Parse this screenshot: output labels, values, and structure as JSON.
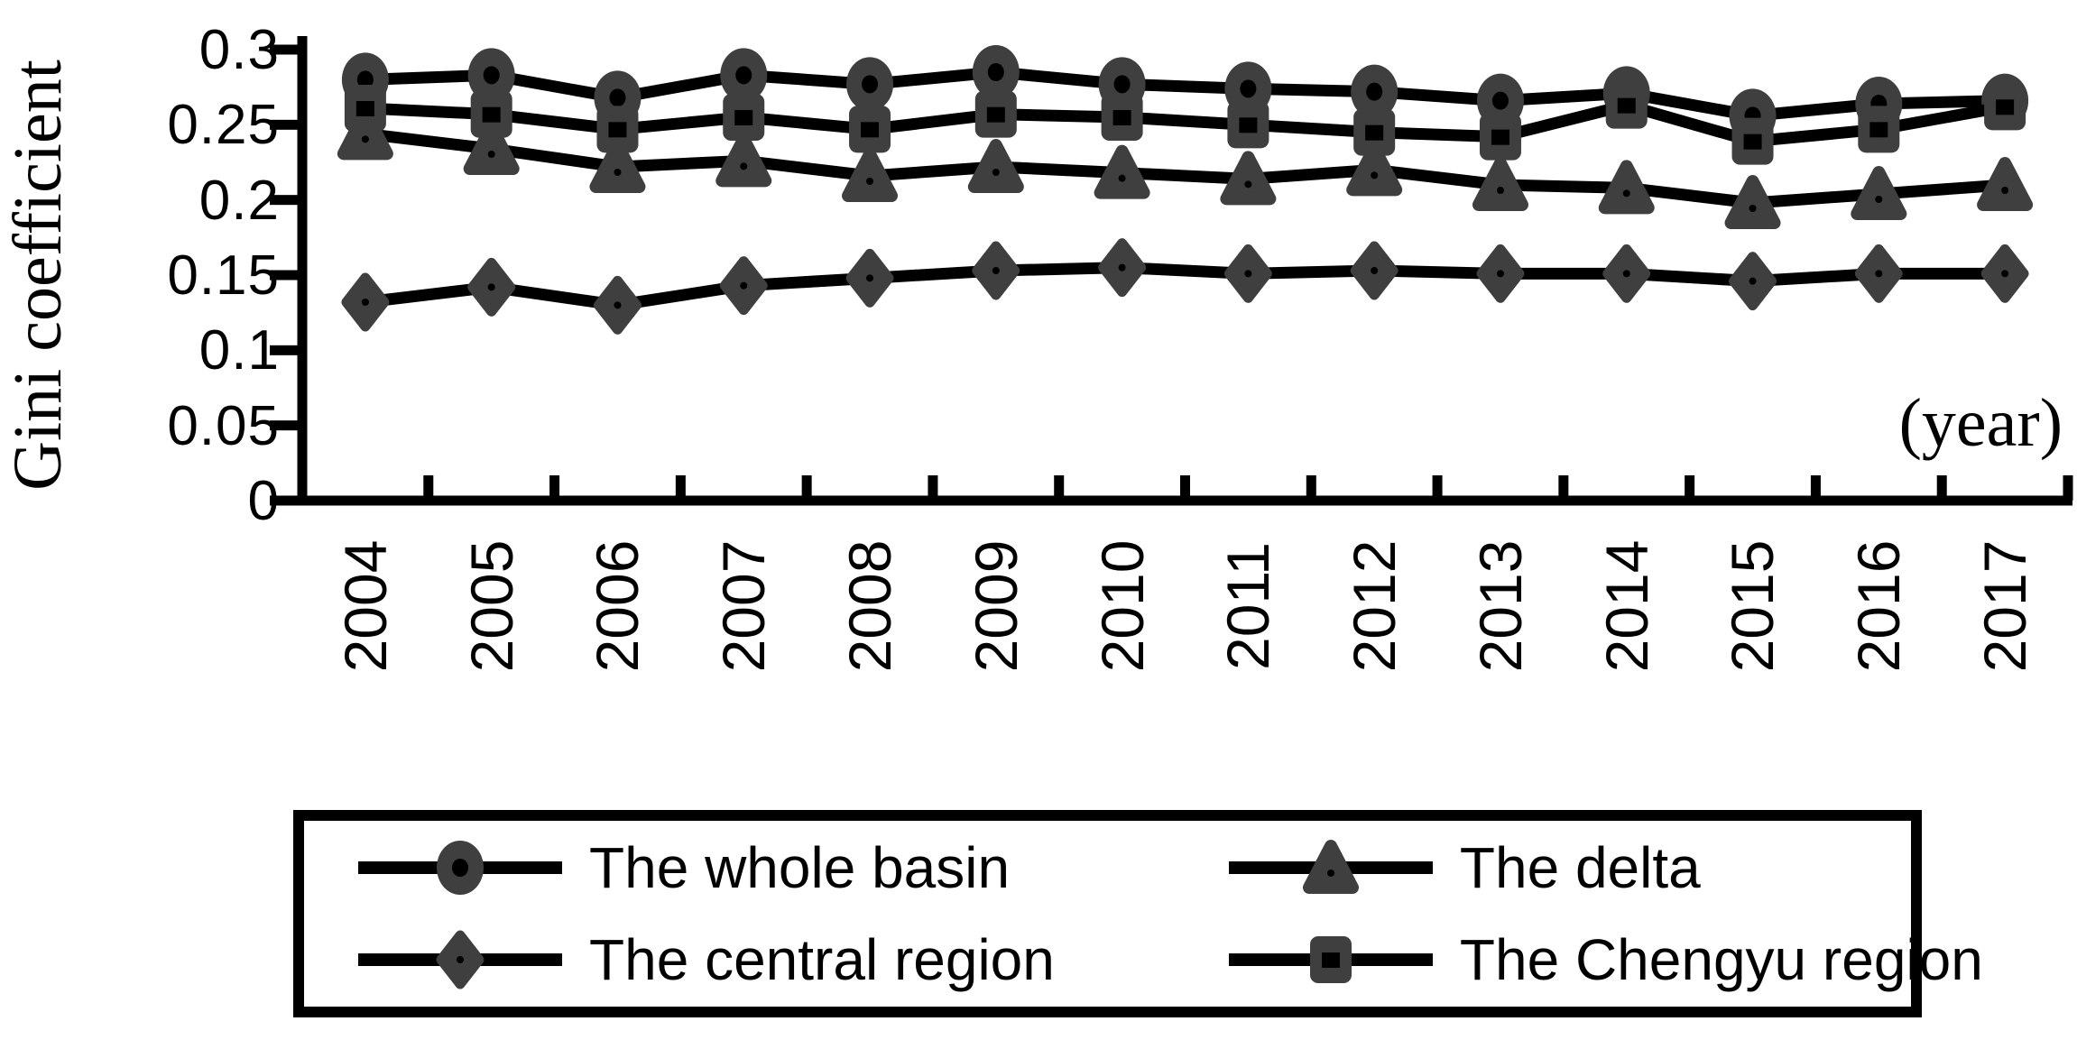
{
  "chart_data": {
    "type": "line",
    "title": "",
    "ylabel": "Gini coefficient",
    "x_unit": "(year)",
    "grid": false,
    "legend_position": "bottom-box",
    "ylim": [
      0,
      0.3
    ],
    "y_ticks": [
      "0.3",
      "0.25",
      "0.2",
      "0.15",
      "0.1",
      "0.05",
      "0"
    ],
    "y_tick_values": [
      0.3,
      0.25,
      0.2,
      0.15,
      0.1,
      0.05,
      0
    ],
    "years": [
      "2004",
      "2005",
      "2006",
      "2007",
      "2008",
      "2009",
      "2010",
      "2011",
      "2012",
      "2013",
      "2014",
      "2015",
      "2016",
      "2017"
    ],
    "series": [
      {
        "name": "The whole basin",
        "marker": "circle",
        "values": [
          0.28,
          0.283,
          0.268,
          0.283,
          0.277,
          0.285,
          0.277,
          0.274,
          0.272,
          0.266,
          0.271,
          0.256,
          0.264,
          0.266
        ]
      },
      {
        "name": "The delta",
        "marker": "triangle",
        "values": [
          0.244,
          0.234,
          0.222,
          0.226,
          0.216,
          0.222,
          0.218,
          0.214,
          0.22,
          0.21,
          0.208,
          0.198,
          0.204,
          0.21
        ]
      },
      {
        "name": "The central region",
        "marker": "diamond",
        "values": [
          0.132,
          0.142,
          0.13,
          0.143,
          0.148,
          0.153,
          0.155,
          0.151,
          0.153,
          0.151,
          0.151,
          0.146,
          0.151,
          0.151
        ]
      },
      {
        "name": "The Chengyu region",
        "marker": "square",
        "values": [
          0.261,
          0.257,
          0.247,
          0.255,
          0.247,
          0.257,
          0.255,
          0.25,
          0.245,
          0.242,
          0.263,
          0.239,
          0.247,
          0.262
        ]
      }
    ],
    "colors": {
      "line": "#000000",
      "marker": "#3f3f3f",
      "text": "#000000",
      "background": "#ffffff"
    }
  }
}
